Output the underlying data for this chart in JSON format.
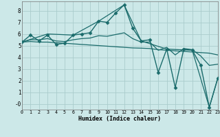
{
  "xlabel": "Humidex (Indice chaleur)",
  "bg_color": "#cce8e8",
  "grid_color": "#aacccc",
  "line_color": "#1a6b6b",
  "x_min": 0,
  "x_max": 23,
  "y_min": -0.5,
  "y_max": 8.8,
  "yticks": [
    0,
    1,
    2,
    3,
    4,
    5,
    6,
    7,
    8
  ],
  "ytick_labels": [
    "-0",
    "1",
    "2",
    "3",
    "4",
    "5",
    "6",
    "7",
    "8"
  ],
  "series": [
    {
      "x": [
        0,
        1,
        2,
        3,
        4,
        5,
        6,
        7,
        8,
        9,
        10,
        11,
        12,
        13,
        14,
        15,
        16,
        17,
        18,
        19,
        20,
        21,
        22,
        23
      ],
      "y": [
        5.3,
        5.9,
        5.4,
        5.9,
        5.1,
        5.2,
        5.9,
        6.0,
        6.1,
        7.1,
        7.0,
        7.8,
        8.5,
        6.5,
        5.4,
        5.5,
        2.7,
        4.7,
        1.4,
        4.7,
        4.6,
        3.3,
        -0.3,
        2.2
      ],
      "marker": "D",
      "markersize": 2.5,
      "linewidth": 1.0
    },
    {
      "x": [
        0,
        1,
        2,
        3,
        4,
        5,
        6,
        7,
        8,
        9,
        10,
        11,
        12,
        13,
        14,
        15,
        16,
        17,
        18,
        19,
        20,
        21,
        22,
        23
      ],
      "y": [
        5.3,
        5.35,
        5.3,
        5.3,
        5.25,
        5.2,
        5.15,
        5.1,
        5.05,
        5.0,
        4.95,
        4.9,
        4.85,
        4.8,
        4.78,
        4.75,
        4.65,
        4.6,
        4.55,
        4.5,
        4.45,
        4.4,
        4.35,
        4.2
      ],
      "marker": null,
      "linewidth": 0.9
    },
    {
      "x": [
        0,
        3,
        6,
        9,
        12,
        14,
        17,
        20,
        22,
        23
      ],
      "y": [
        5.3,
        6.0,
        5.9,
        7.1,
        8.5,
        5.4,
        4.7,
        4.6,
        -0.3,
        2.2
      ],
      "marker": null,
      "linewidth": 0.9
    },
    {
      "x": [
        0,
        1,
        2,
        3,
        4,
        5,
        6,
        7,
        8,
        9,
        10,
        11,
        12,
        13,
        14,
        15,
        16,
        17,
        18,
        19,
        20,
        21,
        22,
        23
      ],
      "y": [
        5.3,
        5.5,
        5.5,
        5.6,
        5.4,
        5.35,
        5.5,
        5.6,
        5.65,
        5.85,
        5.8,
        5.95,
        6.1,
        5.6,
        5.3,
        5.3,
        4.6,
        4.85,
        4.2,
        4.75,
        4.65,
        4.1,
        3.3,
        3.4
      ],
      "marker": null,
      "linewidth": 0.9
    }
  ]
}
